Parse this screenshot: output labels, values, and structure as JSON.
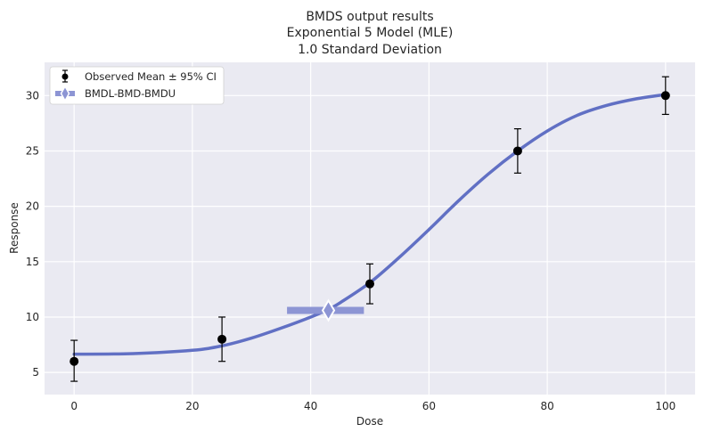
{
  "chart_data": {
    "type": "scatter",
    "title": "BMDS output results",
    "subtitle_lines": [
      "Exponential 5 Model (MLE)",
      "1.0 Standard Deviation"
    ],
    "xlabel": "Dose",
    "ylabel": "Response",
    "xlim": [
      -5,
      105
    ],
    "ylim": [
      3,
      33
    ],
    "xticks": [
      0,
      20,
      40,
      60,
      80,
      100
    ],
    "yticks": [
      5,
      10,
      15,
      20,
      25,
      30
    ],
    "grid": true,
    "legend_position": "top-left",
    "legend": [
      "Observed Mean ± 95% CI",
      "BMDL-BMD-BMDU"
    ],
    "observed": [
      {
        "dose": 0,
        "mean": 6.0,
        "ci_low": 4.2,
        "ci_high": 7.9
      },
      {
        "dose": 25,
        "mean": 8.0,
        "ci_low": 6.0,
        "ci_high": 10.0
      },
      {
        "dose": 50,
        "mean": 13.0,
        "ci_low": 11.2,
        "ci_high": 14.8
      },
      {
        "dose": 75,
        "mean": 25.0,
        "ci_low": 23.0,
        "ci_high": 27.0
      },
      {
        "dose": 100,
        "mean": 30.0,
        "ci_low": 28.3,
        "ci_high": 31.7
      }
    ],
    "model_curve": {
      "x": [
        0,
        10,
        20,
        25,
        30,
        35,
        40,
        43,
        45,
        50,
        55,
        60,
        65,
        70,
        75,
        80,
        85,
        90,
        95,
        100
      ],
      "y": [
        6.65,
        6.7,
        7.0,
        7.4,
        8.1,
        9.0,
        10.0,
        10.7,
        11.3,
        13.1,
        15.4,
        17.9,
        20.5,
        22.9,
        25.0,
        26.8,
        28.2,
        29.1,
        29.7,
        30.1
      ]
    },
    "bmd": {
      "bmdl": 36.0,
      "bmd": 43.0,
      "bmdu": 49.0,
      "response": 10.6
    },
    "colors": {
      "background": "#eaeaf2",
      "grid": "#ffffff",
      "curve": "#6170c4",
      "bmd": "#8d95d4",
      "points": "#000000"
    }
  }
}
